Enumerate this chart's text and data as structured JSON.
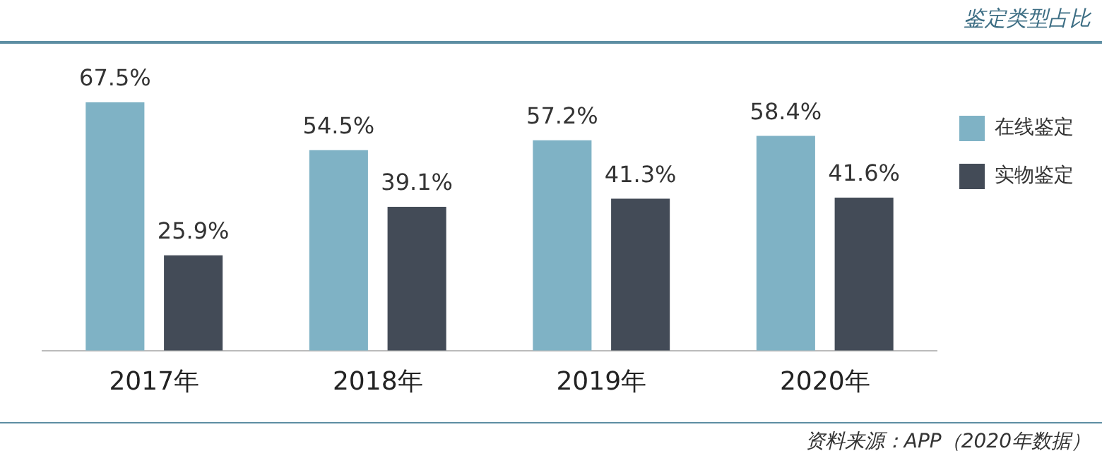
{
  "chart_data": {
    "type": "bar",
    "title": "鉴定类型占比",
    "categories": [
      "2017年",
      "2018年",
      "2019年",
      "2020年"
    ],
    "series": [
      {
        "name": "在线鉴定",
        "color": "#7fb2c5",
        "values": [
          67.5,
          54.5,
          57.2,
          58.4
        ],
        "value_labels": [
          "67.5%",
          "54.5%",
          "57.2%",
          "58.4%"
        ]
      },
      {
        "name": "实物鉴定",
        "color": "#434b57",
        "values": [
          25.9,
          39.1,
          41.3,
          41.6
        ],
        "value_labels": [
          "25.9%",
          "39.1%",
          "41.3%",
          "41.6%"
        ]
      }
    ],
    "legend": "right",
    "grid": false,
    "tick_labels": "x",
    "annotations": [
      "资料来源：APP（2020年数据）"
    ]
  }
}
